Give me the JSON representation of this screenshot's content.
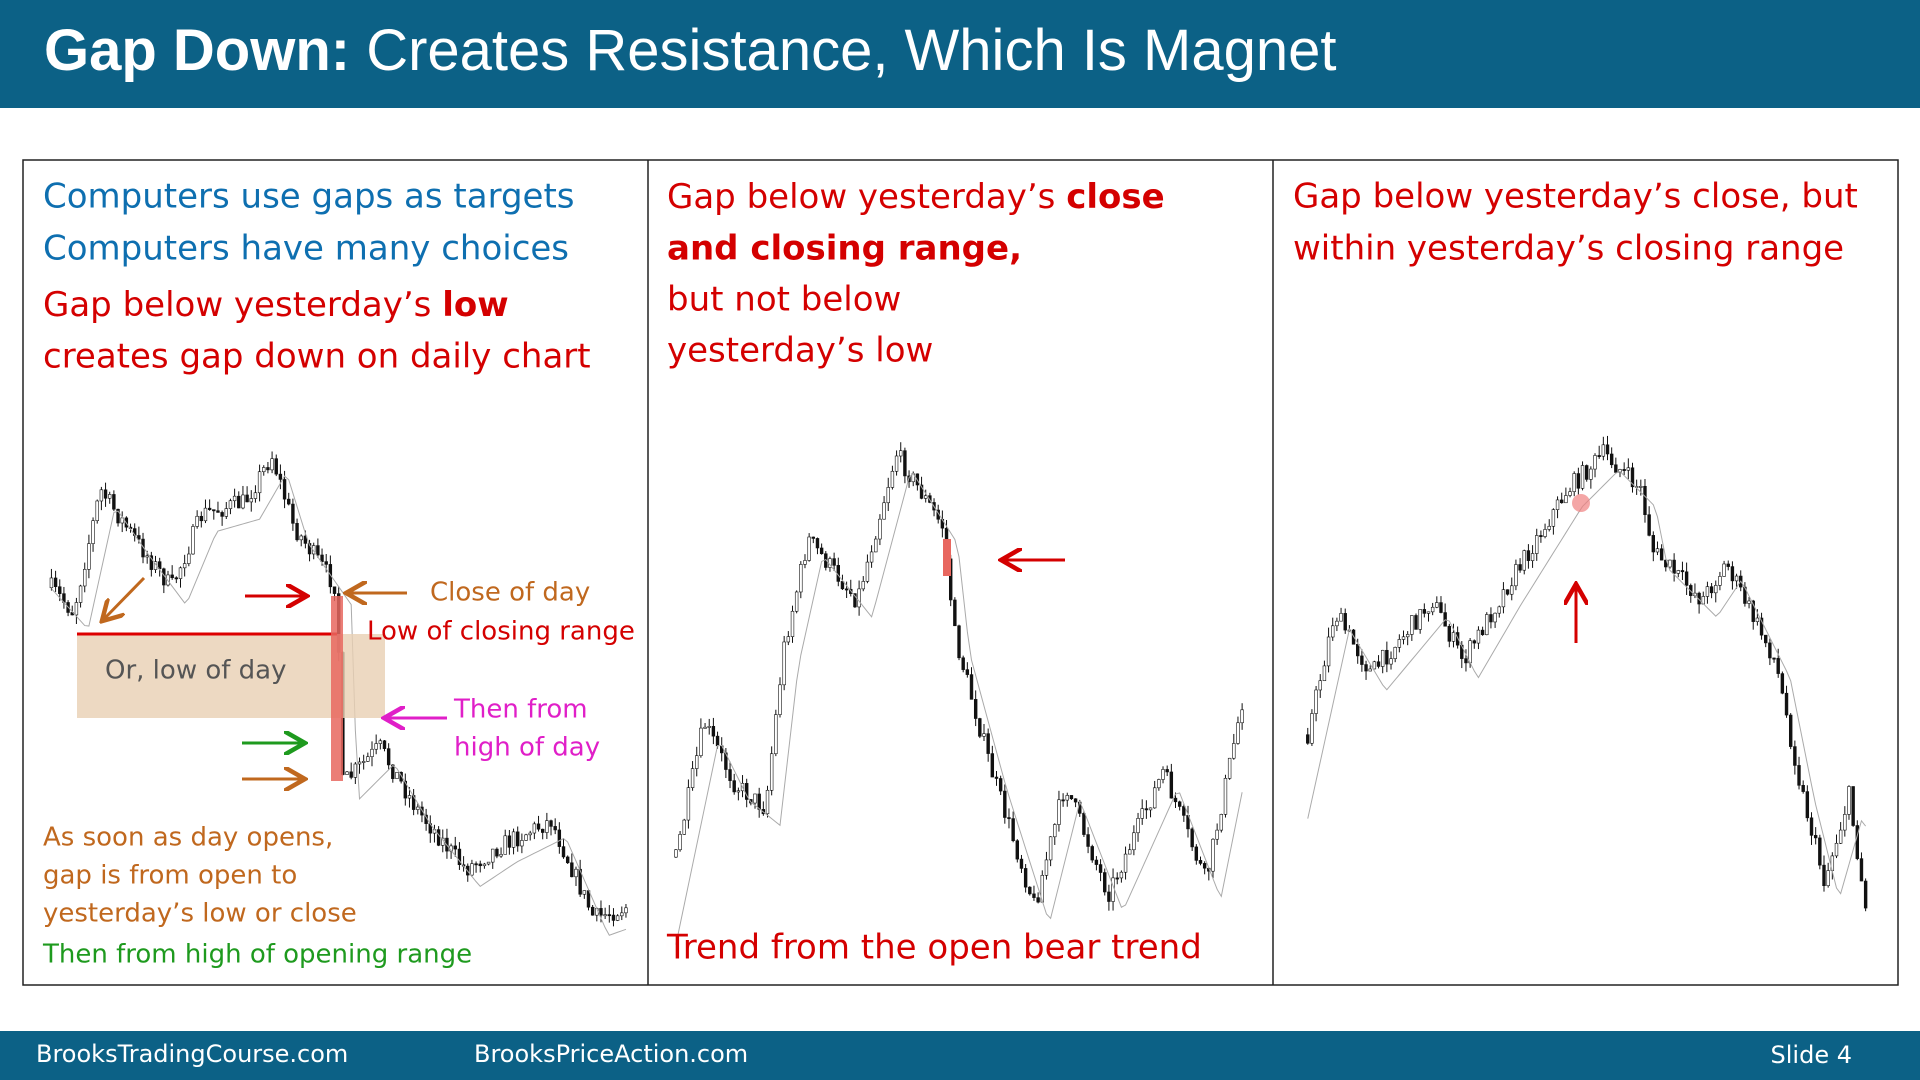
{
  "header": {
    "title_bold": "Gap Down:",
    "title_rest": "Creates Resistance, Which Is Magnet"
  },
  "panels": [
    {
      "lines": [
        "Computers use gaps as targets",
        "Computers have many choices"
      ],
      "gap_line_start": "Gap below yesterday’s ",
      "gap_line_bold": "low",
      "gap_line_2": "creates gap down on daily chart",
      "annotations": {
        "close_of_day": "Close of day",
        "low_of_closing_range": "Low of closing range",
        "low_of_day": "Or, low of day",
        "then_from": "Then from",
        "high_of_day": "high of day"
      },
      "notes": [
        "As soon as day opens,",
        "gap is from open to",
        "yesterday’s low or close"
      ],
      "green_note": "Then from high of opening range"
    },
    {
      "line1_start": "Gap below yesterday’s ",
      "line1_bold": "close",
      "line2_bold": "and closing range,",
      "lines": [
        "but not below",
        "yesterday’s low"
      ],
      "caption": "Trend from the open bear trend"
    },
    {
      "lines": [
        "Gap below yesterday’s close, but",
        "within yesterday’s closing range"
      ]
    }
  ],
  "footer": {
    "site1": "BrooksTradingCourse.com",
    "site2": "BrooksPriceAction.com",
    "slide": "Slide  4"
  }
}
